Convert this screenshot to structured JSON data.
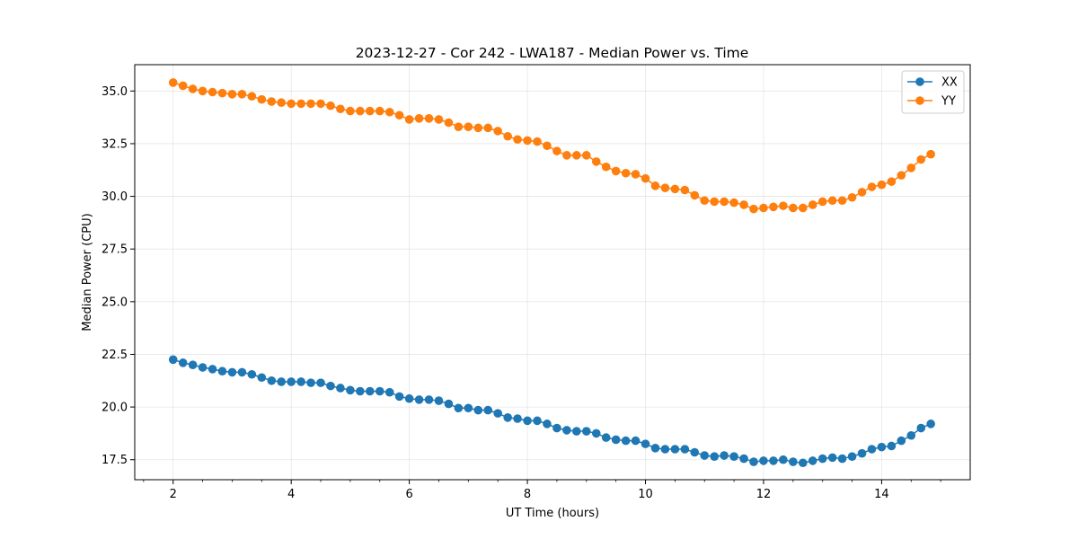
{
  "chart_data": {
    "type": "line",
    "title": "2023-12-27 - Cor 242 - LWA187 - Median Power vs. Time",
    "xlabel": "UT Time (hours)",
    "ylabel": "Median Power (CPU)",
    "xlim": [
      1.35,
      15.5
    ],
    "ylim": [
      16.55,
      36.25
    ],
    "x_ticks": [
      2,
      4,
      6,
      8,
      10,
      12,
      14
    ],
    "x_tick_labels": [
      "2",
      "4",
      "6",
      "8",
      "10",
      "12",
      "14"
    ],
    "y_ticks": [
      17.5,
      20.0,
      22.5,
      25.0,
      27.5,
      30.0,
      32.5,
      35.0
    ],
    "y_tick_labels": [
      "17.5",
      "20.0",
      "22.5",
      "25.0",
      "27.5",
      "30.0",
      "32.5",
      "35.0"
    ],
    "grid": true,
    "legend_position": "top-right",
    "x": [
      2.0,
      2.167,
      2.333,
      2.5,
      2.667,
      2.833,
      3.0,
      3.167,
      3.333,
      3.5,
      3.667,
      3.833,
      4.0,
      4.167,
      4.333,
      4.5,
      4.667,
      4.833,
      5.0,
      5.167,
      5.333,
      5.5,
      5.667,
      5.833,
      6.0,
      6.167,
      6.333,
      6.5,
      6.667,
      6.833,
      7.0,
      7.167,
      7.333,
      7.5,
      7.667,
      7.833,
      8.0,
      8.167,
      8.333,
      8.5,
      8.667,
      8.833,
      9.0,
      9.167,
      9.333,
      9.5,
      9.667,
      9.833,
      10.0,
      10.167,
      10.333,
      10.5,
      10.667,
      10.833,
      11.0,
      11.167,
      11.333,
      11.5,
      11.667,
      11.833,
      12.0,
      12.167,
      12.333,
      12.5,
      12.667,
      12.833,
      13.0,
      13.167,
      13.333,
      13.5,
      13.667,
      13.833,
      14.0,
      14.167,
      14.333,
      14.5,
      14.667,
      14.833
    ],
    "series": [
      {
        "name": "XX",
        "color": "#1f77b4",
        "values": [
          22.25,
          22.1,
          22.0,
          21.88,
          21.8,
          21.7,
          21.65,
          21.65,
          21.55,
          21.4,
          21.25,
          21.2,
          21.2,
          21.2,
          21.15,
          21.15,
          21.0,
          20.9,
          20.8,
          20.75,
          20.75,
          20.75,
          20.7,
          20.5,
          20.4,
          20.35,
          20.35,
          20.3,
          20.15,
          19.95,
          19.95,
          19.85,
          19.85,
          19.7,
          19.5,
          19.45,
          19.35,
          19.35,
          19.2,
          19.0,
          18.9,
          18.85,
          18.85,
          18.75,
          18.55,
          18.45,
          18.4,
          18.4,
          18.25,
          18.05,
          18.0,
          18.0,
          18.0,
          17.85,
          17.7,
          17.65,
          17.7,
          17.65,
          17.55,
          17.4,
          17.45,
          17.45,
          17.5,
          17.4,
          17.35,
          17.45,
          17.55,
          17.6,
          17.55,
          17.65,
          17.8,
          18.0,
          18.1,
          18.15,
          18.4,
          18.65,
          19.0,
          19.2
        ]
      },
      {
        "name": "YY",
        "color": "#ff7f0e",
        "values": [
          35.4,
          35.25,
          35.1,
          35.0,
          34.95,
          34.9,
          34.85,
          34.85,
          34.75,
          34.6,
          34.5,
          34.45,
          34.4,
          34.4,
          34.4,
          34.4,
          34.3,
          34.15,
          34.05,
          34.05,
          34.05,
          34.05,
          34.0,
          33.85,
          33.65,
          33.7,
          33.7,
          33.65,
          33.5,
          33.3,
          33.3,
          33.25,
          33.25,
          33.1,
          32.85,
          32.7,
          32.65,
          32.6,
          32.4,
          32.15,
          31.95,
          31.95,
          31.95,
          31.65,
          31.4,
          31.2,
          31.1,
          31.05,
          30.85,
          30.5,
          30.4,
          30.35,
          30.3,
          30.05,
          29.8,
          29.75,
          29.75,
          29.7,
          29.6,
          29.4,
          29.45,
          29.5,
          29.55,
          29.45,
          29.45,
          29.6,
          29.75,
          29.8,
          29.8,
          29.95,
          30.2,
          30.45,
          30.55,
          30.7,
          31.0,
          31.35,
          31.75,
          32.0
        ]
      }
    ]
  }
}
